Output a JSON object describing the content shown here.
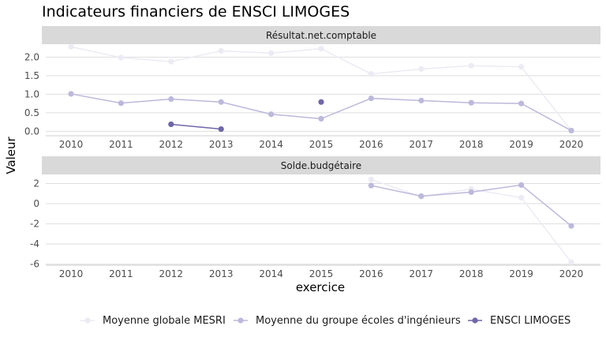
{
  "chart_data": {
    "type": "line",
    "title": "Indicateurs financiers de ENSCI LIMOGES",
    "xlabel": "exercice",
    "ylabel": "Valeur",
    "colors": {
      "Moyenne globale MESRI": "#ecebf3",
      "Moyenne du groupe écoles d'ingénieurs": "#bcb9db",
      "ENSCI LIMOGES": "#6f67a8"
    },
    "legend": {
      "position": "bottom",
      "entries": [
        "Moyenne globale MESRI",
        "Moyenne du groupe écoles d'ingénieurs",
        "ENSCI LIMOGES"
      ]
    },
    "grid": true,
    "x_ticks": [
      "2010",
      "2011",
      "2012",
      "2013",
      "2014",
      "2015",
      "2016",
      "2017",
      "2018",
      "2019",
      "2020"
    ],
    "panels": [
      {
        "strip": "Résultat.net.comptable",
        "ylim": [
          -0.12,
          2.35
        ],
        "y_ticks": [
          "0.0",
          "0.5",
          "1.0",
          "1.5",
          "2.0"
        ],
        "y_tick_values": [
          0,
          0.5,
          1,
          1.5,
          2
        ],
        "series": [
          {
            "name": "Moyenne globale MESRI",
            "x": [
              2010,
              2011,
              2012,
              2013,
              2014,
              2015,
              2016,
              2017,
              2018,
              2019,
              2020
            ],
            "y": [
              2.28,
              1.99,
              1.88,
              2.17,
              2.11,
              2.23,
              1.55,
              1.68,
              1.77,
              1.74,
              0.02
            ]
          },
          {
            "name": "Moyenne du groupe écoles d'ingénieurs",
            "x": [
              2010,
              2011,
              2012,
              2013,
              2014,
              2015,
              2016,
              2017,
              2018,
              2019,
              2020
            ],
            "y": [
              1.01,
              0.76,
              0.87,
              0.79,
              0.46,
              0.34,
              0.89,
              0.83,
              0.77,
              0.75,
              0.02
            ]
          },
          {
            "name": "ENSCI LIMOGES",
            "x": [
              2012,
              2013,
              2015
            ],
            "y": [
              0.19,
              0.06,
              0.79
            ],
            "segments": [
              [
                0,
                1
              ]
            ]
          }
        ]
      },
      {
        "strip": "Solde.budgétaire",
        "ylim": [
          -6.1,
          2.9
        ],
        "y_ticks": [
          "2",
          "0",
          "-2",
          "-4",
          "-6"
        ],
        "y_tick_values": [
          2,
          0,
          -2,
          -4,
          -6
        ],
        "series": [
          {
            "name": "Moyenne globale MESRI",
            "x": [
              2016,
              2017,
              2018,
              2019,
              2020
            ],
            "y": [
              2.4,
              0.7,
              1.45,
              0.6,
              -5.8
            ]
          },
          {
            "name": "Moyenne du groupe écoles d'ingénieurs",
            "x": [
              2016,
              2017,
              2018,
              2019,
              2020
            ],
            "y": [
              1.8,
              0.75,
              1.15,
              1.85,
              -2.2
            ]
          }
        ]
      }
    ]
  }
}
